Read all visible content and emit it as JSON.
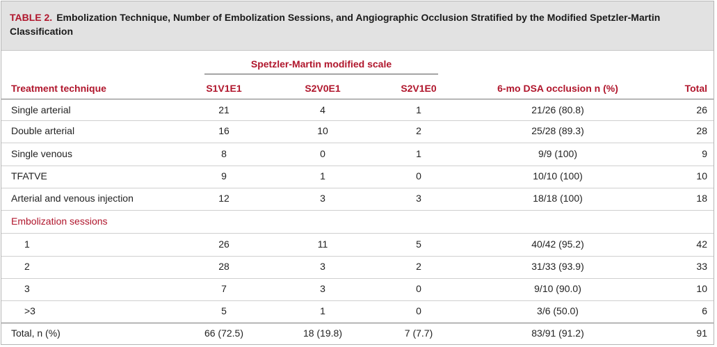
{
  "table": {
    "label": "TABLE 2.",
    "title": "Embolization Technique, Number of Embolization Sessions, and Angiographic Occlusion Stratified by the Modified Spetzler-Martin Classification",
    "group_header": "Spetzler-Martin modified scale",
    "columns": [
      "Treatment technique",
      "S1V1E1",
      "S2V0E1",
      "S2V1E0",
      "6-mo DSA occlusion n (%)",
      "Total"
    ],
    "rows_technique": [
      [
        "Single arterial",
        "21",
        "4",
        "1",
        "21/26 (80.8)",
        "26"
      ],
      [
        "Double arterial",
        "16",
        "10",
        "2",
        "25/28 (89.3)",
        "28"
      ],
      [
        "Single venous",
        "8",
        "0",
        "1",
        "9/9 (100)",
        "9"
      ],
      [
        "TFATVE",
        "9",
        "1",
        "0",
        "10/10 (100)",
        "10"
      ],
      [
        "Arterial and venous injection",
        "12",
        "3",
        "3",
        "18/18 (100)",
        "18"
      ]
    ],
    "section_label": "Embolization sessions",
    "rows_sessions": [
      [
        "1",
        "26",
        "11",
        "5",
        "40/42 (95.2)",
        "42"
      ],
      [
        "2",
        "28",
        "3",
        "2",
        "31/33 (93.9)",
        "33"
      ],
      [
        "3",
        "7",
        "3",
        "0",
        "9/10 (90.0)",
        "10"
      ],
      [
        ">3",
        "5",
        "1",
        "0",
        "3/6 (50.0)",
        "6"
      ]
    ],
    "total_row": [
      "Total, n (%)",
      "66 (72.5)",
      "18 (19.8)",
      "7 (7.7)",
      "83/91 (91.2)",
      "91"
    ]
  }
}
